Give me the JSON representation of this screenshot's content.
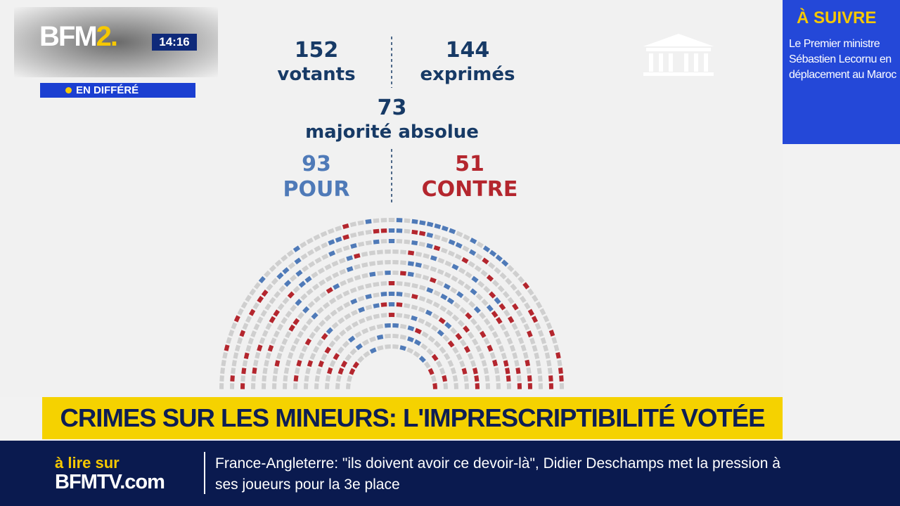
{
  "logo": {
    "name": "BFM",
    "number": "2.",
    "time": "14:16",
    "status": "EN DIFFÉRÉ"
  },
  "vote": {
    "votants": {
      "number": 152,
      "label": "votants"
    },
    "exprimes": {
      "number": 144,
      "label": "exprimés"
    },
    "majorite": {
      "number": 73,
      "label": "majorité absolue"
    },
    "pour": {
      "number": 93,
      "label": "POUR"
    },
    "contre": {
      "number": 51,
      "label": "CONTRE"
    }
  },
  "headline": "CRIMES SUR LES MINEURS: L'IMPRESCRIPTIBILITÉ VOTÉE",
  "sidebar": {
    "title": "À SUIVRE",
    "text": "Le Premier ministre Sébastien Lecornu en déplacement au Maroc"
  },
  "ticker": {
    "brand_top": "à lire sur",
    "brand": "BFMTV.com",
    "text": "France-Angleterre: \"ils doivent avoir ce devoir-là\", Didier Deschamps met la pression à ses joueurs pour la 3e place"
  }
}
